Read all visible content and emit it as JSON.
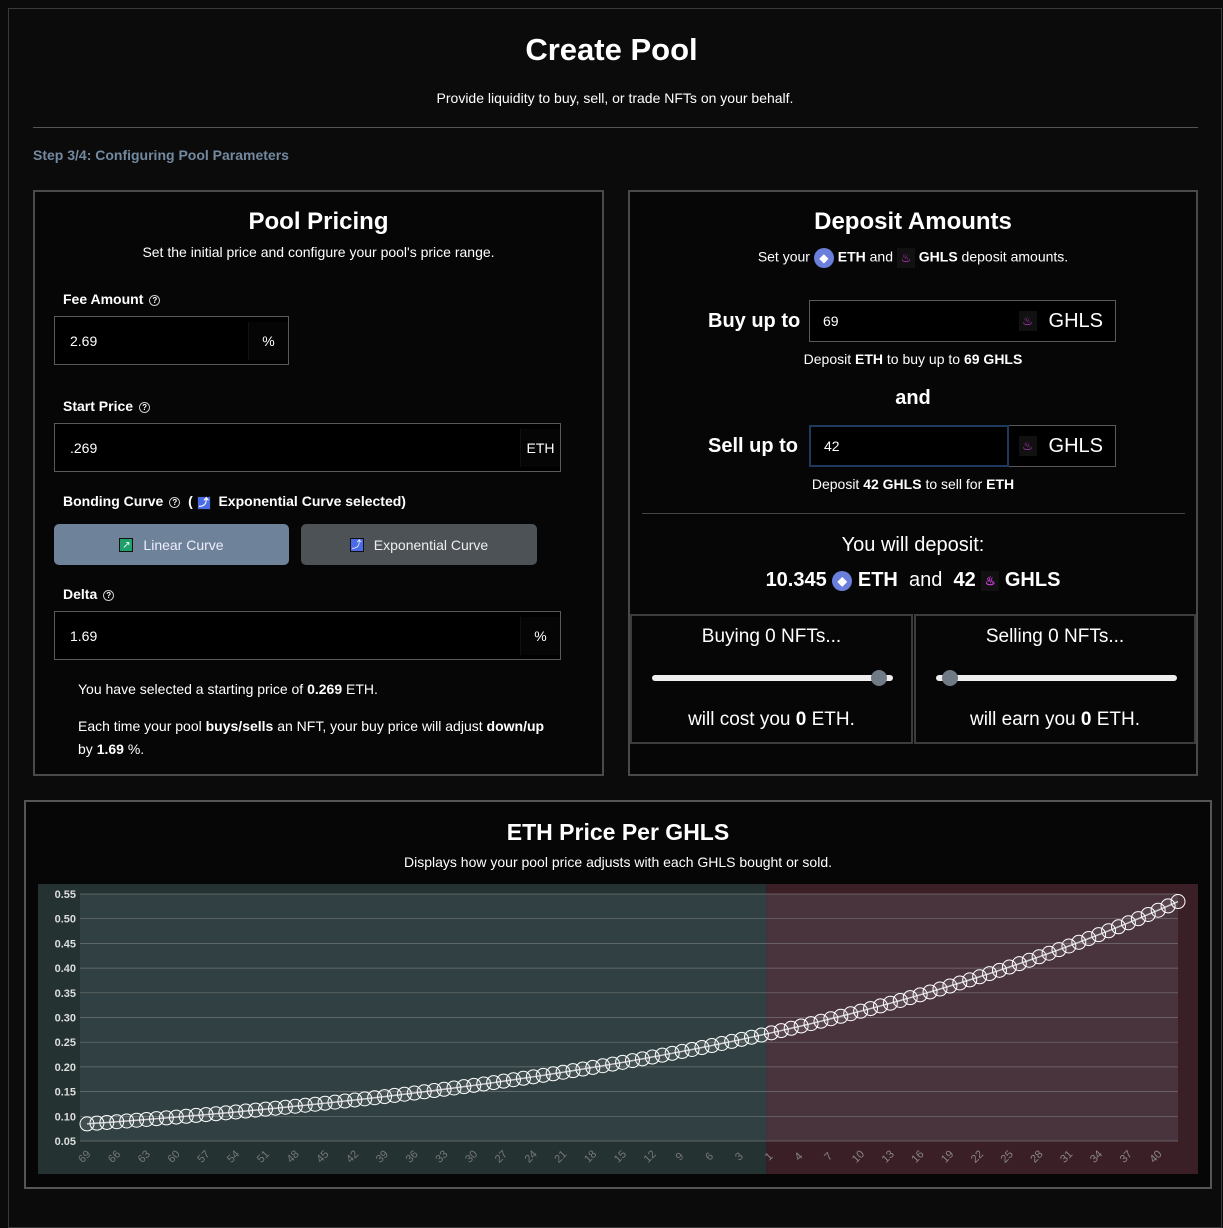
{
  "header": {
    "title": "Create Pool",
    "subtitle": "Provide liquidity to buy, sell, or trade NFTs on your behalf.",
    "step": "Step 3/4: Configuring Pool Parameters"
  },
  "pricing": {
    "title": "Pool Pricing",
    "subtitle": "Set the initial price and configure your pool's price range.",
    "fee_label": "Fee Amount",
    "fee_value": "2.69",
    "fee_unit": "%",
    "start_label": "Start Price",
    "start_value": ".269",
    "start_unit": "ETH",
    "curve_label": "Bonding Curve",
    "curve_open": "(",
    "curve_selected": "Exponential Curve selected)",
    "linear_label": "Linear Curve",
    "exponential_label": "Exponential Curve",
    "delta_label": "Delta",
    "delta_value": "1.69",
    "delta_unit": "%",
    "summary1_pre": "You have selected a starting price of ",
    "summary1_val": "0.269",
    "summary1_post": " ETH.",
    "summary2_a": "Each time your pool ",
    "summary2_b": "buys/sells",
    "summary2_c": " an NFT, your buy price will adjust ",
    "summary2_d": "down/up",
    "summary2_e": " by ",
    "summary2_f": "1.69",
    "summary2_g": " %."
  },
  "deposit": {
    "title": "Deposit Amounts",
    "sub_a": "Set your",
    "sub_eth": "ETH",
    "sub_and": "and",
    "sub_ghls": "GHLS",
    "sub_end": "deposit amounts.",
    "buy_label": "Buy up to",
    "buy_value": "69",
    "token": "GHLS",
    "buy_note_a": "Deposit ",
    "buy_note_b": "ETH",
    "buy_note_c": " to buy up to ",
    "buy_note_d": "69 GHLS",
    "and": "and",
    "sell_label": "Sell up to",
    "sell_value": "42",
    "sell_note_a": "Deposit ",
    "sell_note_b": "42 GHLS",
    "sell_note_c": " to sell for ",
    "sell_note_d": "ETH",
    "total_label": "You will deposit:",
    "total_eth": "10.345",
    "eth": "ETH",
    "total_and": "and",
    "total_ghls": "42",
    "ghls": "GHLS",
    "buying": {
      "title": "Buying 0 NFTs...",
      "result_a": "will cost you ",
      "result_b": "0",
      "result_c": " ETH.",
      "slider_fraction": 0.94
    },
    "selling": {
      "title": "Selling 0 NFTs...",
      "result_a": "will earn you ",
      "result_b": "0",
      "result_c": " ETH.",
      "slider_fraction": 0.06
    }
  },
  "colors": {
    "buy_region": "#243332",
    "sell_region": "#3a1f26",
    "accent_eth": "#6a7fdc",
    "accent_ghls": "#d23ce0"
  },
  "chart_data": {
    "type": "scatter",
    "title": "ETH Price Per GHLS",
    "subtitle": "Displays how your pool price adjusts with each GHLS bought or sold.",
    "xlabel": "",
    "ylabel": "",
    "ylim": [
      0.05,
      0.55
    ],
    "yticks": [
      "0.55",
      "0.50",
      "0.45",
      "0.40",
      "0.35",
      "0.30",
      "0.25",
      "0.20",
      "0.15",
      "0.10",
      "0.05"
    ],
    "curve": "exponential",
    "start_price": 0.269,
    "delta_pct": 1.69,
    "buy_points": 69,
    "sell_points": 42,
    "buy_ticks": [
      "69",
      "66",
      "63",
      "60",
      "57",
      "54",
      "51",
      "48",
      "45",
      "42",
      "39",
      "36",
      "33",
      "30",
      "27",
      "24",
      "21",
      "18",
      "15",
      "12",
      "9",
      "6",
      "3"
    ],
    "sell_ticks": [
      "1",
      "4",
      "7",
      "10",
      "13",
      "16",
      "19",
      "22",
      "25",
      "28",
      "31",
      "34",
      "37",
      "40"
    ],
    "grid": true
  }
}
